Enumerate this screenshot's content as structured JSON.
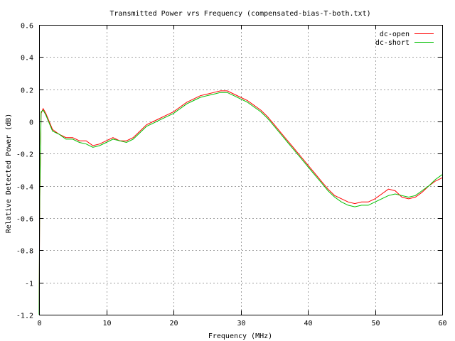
{
  "chart_data": {
    "type": "line",
    "title": "Transmitted Power vrs Frequency (compensated-bias-T-both.txt)",
    "xlabel": "Frequency (MHz)",
    "ylabel": "Relative Detected Power (dB)",
    "xlim": [
      0,
      60
    ],
    "ylim": [
      -1.2,
      0.6
    ],
    "xticks": [
      0,
      10,
      20,
      30,
      40,
      50,
      60
    ],
    "xtick_labels": [
      "0",
      "10",
      "20",
      "30",
      "40",
      "50",
      "60"
    ],
    "yticks": [
      -1.2,
      -1.0,
      -0.8,
      -0.6,
      -0.4,
      -0.2,
      0,
      0.2,
      0.4,
      0.6
    ],
    "ytick_labels": [
      "-1.2",
      "-1",
      "-0.8",
      "-0.6",
      "-0.4",
      "-0.2",
      "0",
      "0.2",
      "0.4",
      "0.6"
    ],
    "grid": true,
    "legend_position": "top-right",
    "series": [
      {
        "name": "dc-open",
        "color": "#ff0000",
        "x": [
          0,
          0.1,
          0.3,
          0.6,
          1,
          2,
          3,
          4,
          5,
          6,
          7,
          8,
          9,
          10,
          11,
          12,
          13,
          14,
          15,
          16,
          17,
          18,
          19,
          20,
          21,
          22,
          23,
          24,
          25,
          26,
          27,
          28,
          29,
          30,
          31,
          32,
          33,
          34,
          35,
          36,
          37,
          38,
          39,
          40,
          41,
          42,
          43,
          44,
          45,
          46,
          47,
          48,
          49,
          50,
          51,
          52,
          53,
          54,
          55,
          56,
          57,
          58,
          59,
          60
        ],
        "y": [
          -1.2,
          -0.5,
          0.05,
          0.08,
          0.05,
          -0.05,
          -0.08,
          -0.1,
          -0.1,
          -0.12,
          -0.12,
          -0.15,
          -0.14,
          -0.12,
          -0.1,
          -0.12,
          -0.12,
          -0.1,
          -0.06,
          -0.02,
          0.0,
          0.02,
          0.04,
          0.06,
          0.09,
          0.12,
          0.14,
          0.16,
          0.17,
          0.18,
          0.19,
          0.19,
          0.17,
          0.15,
          0.13,
          0.1,
          0.07,
          0.03,
          -0.02,
          -0.07,
          -0.12,
          -0.17,
          -0.22,
          -0.27,
          -0.32,
          -0.37,
          -0.42,
          -0.46,
          -0.48,
          -0.5,
          -0.51,
          -0.5,
          -0.5,
          -0.48,
          -0.45,
          -0.42,
          -0.43,
          -0.47,
          -0.48,
          -0.47,
          -0.44,
          -0.4,
          -0.37,
          -0.35
        ]
      },
      {
        "name": "dc-short",
        "color": "#00c000",
        "x": [
          0,
          0.1,
          0.3,
          0.6,
          1,
          2,
          3,
          4,
          5,
          6,
          7,
          8,
          9,
          10,
          11,
          12,
          13,
          14,
          15,
          16,
          17,
          18,
          19,
          20,
          21,
          22,
          23,
          24,
          25,
          26,
          27,
          28,
          29,
          30,
          31,
          32,
          33,
          34,
          35,
          36,
          37,
          38,
          39,
          40,
          41,
          42,
          43,
          44,
          45,
          46,
          47,
          48,
          49,
          50,
          51,
          52,
          53,
          54,
          55,
          56,
          57,
          58,
          59,
          60
        ],
        "y": [
          -1.2,
          -0.45,
          0.06,
          0.07,
          0.04,
          -0.06,
          -0.08,
          -0.11,
          -0.11,
          -0.13,
          -0.14,
          -0.16,
          -0.15,
          -0.13,
          -0.11,
          -0.12,
          -0.13,
          -0.11,
          -0.07,
          -0.03,
          -0.01,
          0.01,
          0.03,
          0.05,
          0.08,
          0.11,
          0.13,
          0.15,
          0.16,
          0.17,
          0.18,
          0.18,
          0.16,
          0.14,
          0.12,
          0.09,
          0.06,
          0.02,
          -0.03,
          -0.08,
          -0.13,
          -0.18,
          -0.23,
          -0.28,
          -0.33,
          -0.38,
          -0.43,
          -0.47,
          -0.5,
          -0.52,
          -0.53,
          -0.52,
          -0.52,
          -0.5,
          -0.48,
          -0.46,
          -0.45,
          -0.46,
          -0.47,
          -0.46,
          -0.43,
          -0.4,
          -0.36,
          -0.33
        ]
      }
    ]
  }
}
